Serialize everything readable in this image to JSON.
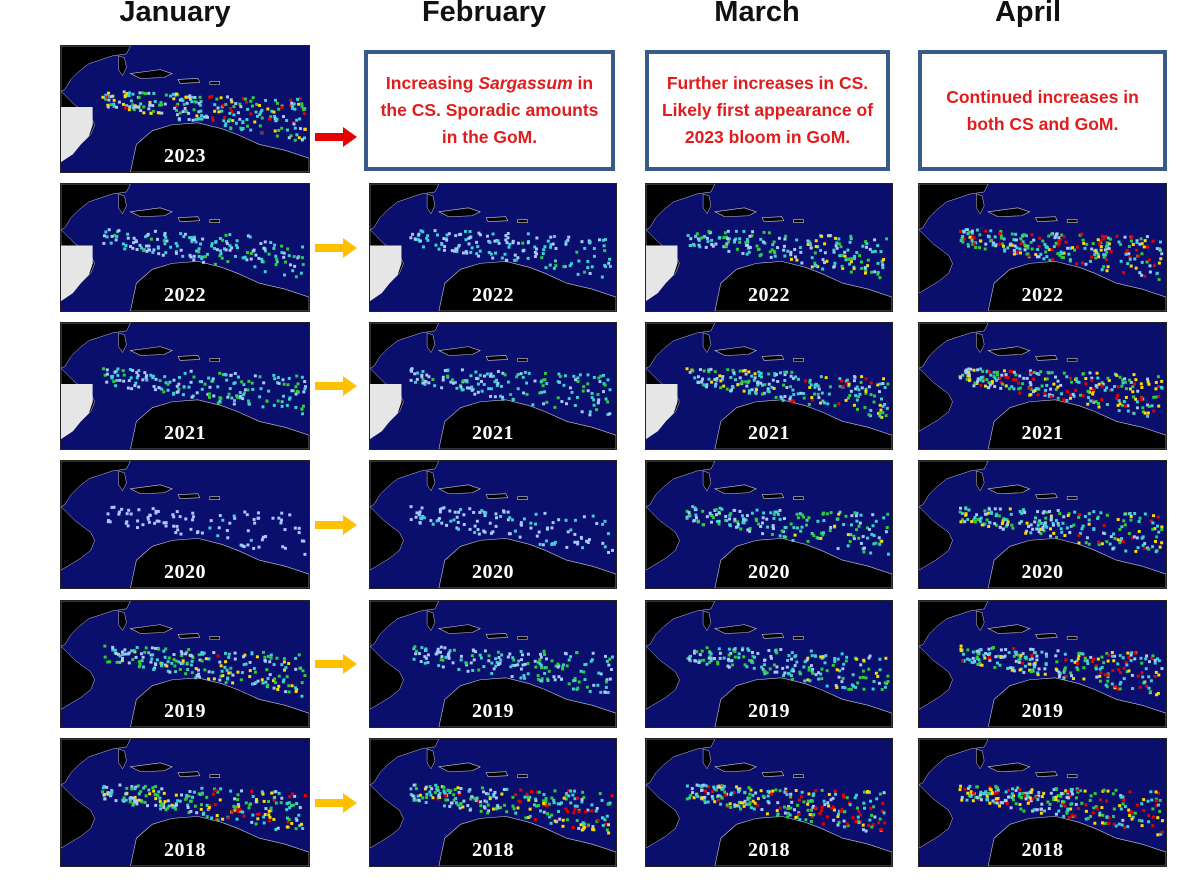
{
  "headers": {
    "january": "January",
    "february": "February",
    "march": "March",
    "april": "April"
  },
  "notes": {
    "february_pre": "Increasing ",
    "february_em": "Sargassum",
    "february_post": " in the CS. Sporadic amounts in the GoM.",
    "march": "Further increases in CS. Likely first appearance of 2023 bloom in GoM.",
    "april": "Continued increases in both CS and GoM."
  },
  "years": [
    "2023",
    "2022",
    "2021",
    "2020",
    "2019",
    "2018"
  ],
  "colors": {
    "ocean": "#0a0f6e",
    "land": "#000000",
    "no_data": "#e6e6e6",
    "arrow_2023": "#e60000",
    "arrow_other": "#ffc000",
    "note_border": "#3a5a8c",
    "note_text": "#e01c1c",
    "density_low": "#3fd1d1",
    "density_mid": "#2ecc40",
    "density_high": "#ffdc00",
    "density_max": "#e60000"
  }
}
